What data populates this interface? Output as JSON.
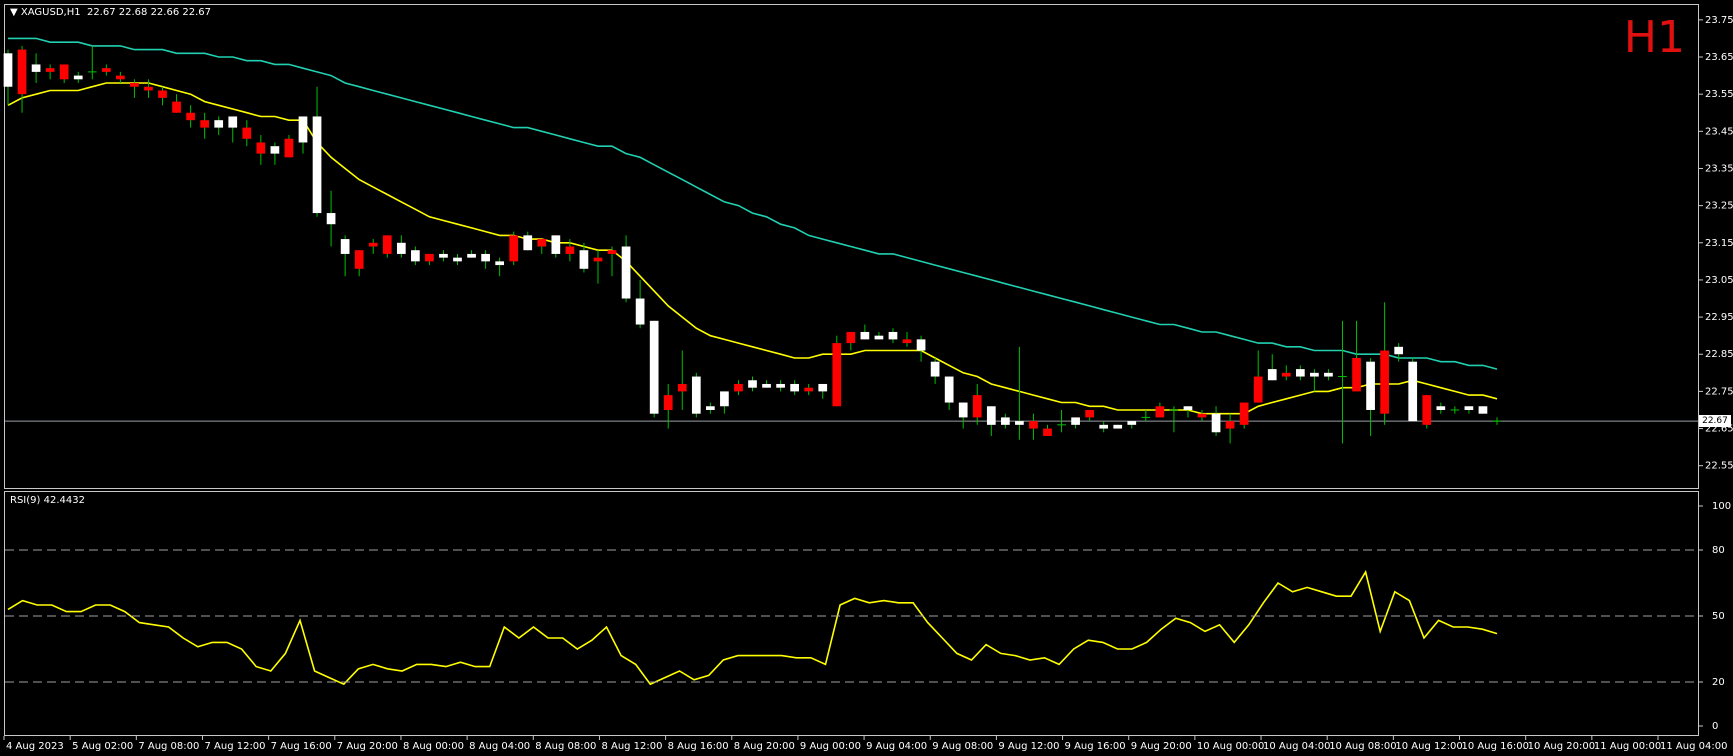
{
  "header": {
    "symbol": "XAGUSD,H1",
    "ohlc": "22.67 22.68 22.66 22.67",
    "timeframe_badge": "H1",
    "rsi_label": "RSI(9) 42.4432",
    "current_price": "22.67"
  },
  "colors": {
    "background": "#000000",
    "bull_candle": "#ffffff",
    "bear_candle": "#ff0000",
    "wick": "#00c000",
    "ma_fast": "#ffff00",
    "ma_slow": "#20d0b0",
    "rsi_line": "#ffff00",
    "timeframe_badge": "#e01010"
  },
  "chart_data": [
    {
      "type": "candlestick",
      "title": "XAGUSD,H1",
      "ylim": [
        22.49,
        23.79
      ],
      "y_ticks": [
        "23.75",
        "23.65",
        "23.55",
        "23.45",
        "23.35",
        "23.25",
        "23.15",
        "23.05",
        "22.95",
        "22.85",
        "22.75",
        "22.65",
        "22.55"
      ],
      "x_tick_labels": [
        "4 Aug 2023",
        "5 Aug 02:00",
        "7 Aug 08:00",
        "7 Aug 12:00",
        "7 Aug 16:00",
        "7 Aug 20:00",
        "8 Aug 00:00",
        "8 Aug 04:00",
        "8 Aug 08:00",
        "8 Aug 12:00",
        "8 Aug 16:00",
        "8 Aug 20:00",
        "9 Aug 00:00",
        "9 Aug 04:00",
        "9 Aug 08:00",
        "9 Aug 12:00",
        "9 Aug 16:00",
        "9 Aug 20:00",
        "10 Aug 00:00",
        "10 Aug 04:00",
        "10 Aug 08:00",
        "10 Aug 12:00",
        "10 Aug 16:00",
        "10 Aug 20:00",
        "11 Aug 00:00",
        "11 Aug 04:00"
      ],
      "current_price_line": 22.67,
      "candles": [
        [
          23.57,
          23.67,
          23.52,
          23.66
        ],
        [
          23.67,
          23.68,
          23.5,
          23.55
        ],
        [
          23.61,
          23.66,
          23.58,
          23.63
        ],
        [
          23.62,
          23.63,
          23.59,
          23.61
        ],
        [
          23.63,
          23.63,
          23.58,
          23.59
        ],
        [
          23.59,
          23.61,
          23.58,
          23.6
        ],
        [
          23.61,
          23.68,
          23.59,
          23.61
        ],
        [
          23.62,
          23.63,
          23.6,
          23.61
        ],
        [
          23.6,
          23.61,
          23.58,
          23.59
        ],
        [
          23.58,
          23.59,
          23.54,
          23.57
        ],
        [
          23.57,
          23.59,
          23.54,
          23.56
        ],
        [
          23.56,
          23.57,
          23.52,
          23.54
        ],
        [
          23.53,
          23.55,
          23.5,
          23.5
        ],
        [
          23.5,
          23.52,
          23.46,
          23.48
        ],
        [
          23.48,
          23.5,
          23.43,
          23.46
        ],
        [
          23.46,
          23.49,
          23.44,
          23.48
        ],
        [
          23.46,
          23.49,
          23.42,
          23.49
        ],
        [
          23.46,
          23.48,
          23.41,
          23.43
        ],
        [
          23.42,
          23.44,
          23.36,
          23.39
        ],
        [
          23.39,
          23.42,
          23.36,
          23.41
        ],
        [
          23.43,
          23.44,
          23.38,
          23.38
        ],
        [
          23.42,
          23.49,
          23.39,
          23.49
        ],
        [
          23.23,
          23.57,
          23.22,
          23.49
        ],
        [
          23.2,
          23.29,
          23.14,
          23.23
        ],
        [
          23.12,
          23.17,
          23.06,
          23.16
        ],
        [
          23.13,
          23.13,
          23.06,
          23.08
        ],
        [
          23.15,
          23.16,
          23.12,
          23.14
        ],
        [
          23.17,
          23.17,
          23.11,
          23.12
        ],
        [
          23.12,
          23.17,
          23.11,
          23.15
        ],
        [
          23.1,
          23.14,
          23.09,
          23.13
        ],
        [
          23.12,
          23.12,
          23.09,
          23.1
        ],
        [
          23.11,
          23.13,
          23.1,
          23.12
        ],
        [
          23.1,
          23.12,
          23.09,
          23.11
        ],
        [
          23.11,
          23.13,
          23.11,
          23.12
        ],
        [
          23.1,
          23.13,
          23.08,
          23.12
        ],
        [
          23.09,
          23.11,
          23.06,
          23.1
        ],
        [
          23.17,
          23.18,
          23.09,
          23.1
        ],
        [
          23.13,
          23.18,
          23.13,
          23.17
        ],
        [
          23.16,
          23.16,
          23.12,
          23.14
        ],
        [
          23.12,
          23.17,
          23.11,
          23.17
        ],
        [
          23.14,
          23.16,
          23.1,
          23.12
        ],
        [
          23.08,
          23.15,
          23.07,
          23.13
        ],
        [
          23.11,
          23.13,
          23.04,
          23.1
        ],
        [
          23.13,
          23.14,
          23.06,
          23.12
        ],
        [
          23.0,
          23.17,
          22.99,
          23.14
        ],
        [
          22.93,
          23.05,
          22.92,
          23.0
        ],
        [
          22.69,
          22.94,
          22.68,
          22.94
        ],
        [
          22.74,
          22.77,
          22.65,
          22.7
        ],
        [
          22.77,
          22.86,
          22.7,
          22.75
        ],
        [
          22.69,
          22.8,
          22.68,
          22.79
        ],
        [
          22.7,
          22.72,
          22.69,
          22.71
        ],
        [
          22.71,
          22.75,
          22.69,
          22.75
        ],
        [
          22.77,
          22.78,
          22.74,
          22.75
        ],
        [
          22.76,
          22.79,
          22.75,
          22.78
        ],
        [
          22.76,
          22.78,
          22.76,
          22.77
        ],
        [
          22.76,
          22.78,
          22.75,
          22.77
        ],
        [
          22.75,
          22.78,
          22.74,
          22.77
        ],
        [
          22.76,
          22.77,
          22.74,
          22.75
        ],
        [
          22.75,
          22.77,
          22.73,
          22.77
        ],
        [
          22.88,
          22.9,
          22.71,
          22.71
        ],
        [
          22.91,
          22.91,
          22.86,
          22.88
        ],
        [
          22.89,
          22.93,
          22.89,
          22.91
        ],
        [
          22.89,
          22.91,
          22.89,
          22.9
        ],
        [
          22.89,
          22.92,
          22.88,
          22.91
        ],
        [
          22.89,
          22.91,
          22.87,
          22.88
        ],
        [
          22.86,
          22.9,
          22.83,
          22.89
        ],
        [
          22.79,
          22.84,
          22.77,
          22.83
        ],
        [
          22.72,
          22.79,
          22.7,
          22.79
        ],
        [
          22.68,
          22.72,
          22.65,
          22.72
        ],
        [
          22.74,
          22.77,
          22.66,
          22.68
        ],
        [
          22.66,
          22.71,
          22.63,
          22.71
        ],
        [
          22.66,
          22.69,
          22.65,
          22.68
        ],
        [
          22.66,
          22.87,
          22.62,
          22.67
        ],
        [
          22.67,
          22.69,
          22.62,
          22.65
        ],
        [
          22.65,
          22.66,
          22.63,
          22.63
        ],
        [
          22.66,
          22.7,
          22.64,
          22.66
        ],
        [
          22.66,
          22.68,
          22.65,
          22.68
        ],
        [
          22.7,
          22.7,
          22.67,
          22.68
        ],
        [
          22.65,
          22.67,
          22.64,
          22.66
        ],
        [
          22.65,
          22.66,
          22.65,
          22.66
        ],
        [
          22.66,
          22.67,
          22.65,
          22.67
        ],
        [
          22.68,
          22.7,
          22.67,
          22.68
        ],
        [
          22.71,
          22.72,
          22.68,
          22.68
        ],
        [
          22.7,
          22.71,
          22.64,
          22.7
        ],
        [
          22.7,
          22.71,
          22.68,
          22.71
        ],
        [
          22.69,
          22.7,
          22.67,
          22.68
        ],
        [
          22.64,
          22.71,
          22.63,
          22.69
        ],
        [
          22.67,
          22.69,
          22.61,
          22.65
        ],
        [
          22.72,
          22.72,
          22.65,
          22.66
        ],
        [
          22.79,
          22.86,
          22.72,
          22.72
        ],
        [
          22.78,
          22.85,
          22.78,
          22.81
        ],
        [
          22.8,
          22.82,
          22.78,
          22.79
        ],
        [
          22.79,
          22.82,
          22.78,
          22.81
        ],
        [
          22.79,
          22.81,
          22.75,
          22.8
        ],
        [
          22.79,
          22.81,
          22.78,
          22.8
        ],
        [
          22.79,
          22.94,
          22.61,
          22.79
        ],
        [
          22.84,
          22.94,
          22.75,
          22.75
        ],
        [
          22.7,
          22.84,
          22.63,
          22.83
        ],
        [
          22.86,
          22.99,
          22.66,
          22.69
        ],
        [
          22.85,
          22.88,
          22.83,
          22.87
        ],
        [
          22.67,
          22.84,
          22.67,
          22.83
        ],
        [
          22.74,
          22.74,
          22.65,
          22.66
        ],
        [
          22.7,
          22.72,
          22.69,
          22.71
        ],
        [
          22.7,
          22.71,
          22.69,
          22.7
        ],
        [
          22.7,
          22.71,
          22.69,
          22.71
        ],
        [
          22.69,
          22.71,
          22.69,
          22.71
        ],
        [
          22.67,
          22.68,
          22.66,
          22.67
        ]
      ],
      "ma_fast": [
        23.52,
        23.54,
        23.55,
        23.56,
        23.56,
        23.56,
        23.57,
        23.58,
        23.58,
        23.58,
        23.58,
        23.57,
        23.56,
        23.55,
        23.53,
        23.52,
        23.51,
        23.5,
        23.49,
        23.49,
        23.48,
        23.48,
        23.42,
        23.38,
        23.35,
        23.32,
        23.3,
        23.28,
        23.26,
        23.24,
        23.22,
        23.21,
        23.2,
        23.19,
        23.18,
        23.17,
        23.17,
        23.16,
        23.16,
        23.15,
        23.15,
        23.14,
        23.13,
        23.13,
        23.1,
        23.06,
        23.02,
        22.98,
        22.95,
        22.92,
        22.9,
        22.89,
        22.88,
        22.87,
        22.86,
        22.85,
        22.84,
        22.84,
        22.85,
        22.85,
        22.85,
        22.86,
        22.86,
        22.86,
        22.86,
        22.86,
        22.84,
        22.82,
        22.8,
        22.79,
        22.77,
        22.76,
        22.75,
        22.74,
        22.73,
        22.72,
        22.72,
        22.71,
        22.71,
        22.7,
        22.7,
        22.7,
        22.7,
        22.7,
        22.7,
        22.69,
        22.69,
        22.69,
        22.69,
        22.71,
        22.72,
        22.73,
        22.74,
        22.75,
        22.75,
        22.76,
        22.76,
        22.77,
        22.77,
        22.77,
        22.78,
        22.77,
        22.76,
        22.75,
        22.74,
        22.74,
        22.73
      ],
      "ma_slow": [
        23.7,
        23.7,
        23.7,
        23.69,
        23.69,
        23.69,
        23.68,
        23.68,
        23.68,
        23.67,
        23.67,
        23.67,
        23.66,
        23.66,
        23.66,
        23.65,
        23.65,
        23.64,
        23.64,
        23.63,
        23.63,
        23.62,
        23.61,
        23.6,
        23.58,
        23.57,
        23.56,
        23.55,
        23.54,
        23.53,
        23.52,
        23.51,
        23.5,
        23.49,
        23.48,
        23.47,
        23.46,
        23.46,
        23.45,
        23.44,
        23.43,
        23.42,
        23.41,
        23.41,
        23.39,
        23.38,
        23.36,
        23.34,
        23.32,
        23.3,
        23.28,
        23.26,
        23.25,
        23.23,
        23.22,
        23.2,
        23.19,
        23.17,
        23.16,
        23.15,
        23.14,
        23.13,
        23.12,
        23.12,
        23.11,
        23.1,
        23.09,
        23.08,
        23.07,
        23.06,
        23.05,
        23.04,
        23.03,
        23.02,
        23.01,
        23.0,
        22.99,
        22.98,
        22.97,
        22.96,
        22.95,
        22.94,
        22.93,
        22.93,
        22.92,
        22.91,
        22.91,
        22.9,
        22.89,
        22.88,
        22.88,
        22.87,
        22.87,
        22.86,
        22.86,
        22.86,
        22.85,
        22.85,
        22.85,
        22.84,
        22.84,
        22.84,
        22.83,
        22.83,
        22.82,
        22.82,
        22.81
      ]
    },
    {
      "type": "line",
      "title": "RSI(9) 42.4432",
      "ylim": [
        0,
        100
      ],
      "y_ticks": [
        "100",
        "80",
        "50",
        "20",
        "0"
      ],
      "levels": [
        80,
        50,
        20
      ],
      "series": [
        {
          "name": "RSI(9)",
          "values": [
            53,
            57,
            55,
            55,
            52,
            52,
            55,
            55,
            52,
            47,
            46,
            45,
            40,
            36,
            38,
            38,
            35,
            27,
            25,
            33,
            48,
            25,
            22,
            19,
            26,
            28,
            26,
            25,
            28,
            28,
            27,
            29,
            27,
            27,
            45,
            40,
            45,
            40,
            40,
            35,
            39,
            45,
            32,
            28,
            19,
            22,
            25,
            21,
            23,
            30,
            32,
            32,
            32,
            32,
            31,
            31,
            28,
            55,
            58,
            56,
            57,
            56,
            56,
            47,
            40,
            33,
            30,
            37,
            33,
            32,
            30,
            31,
            28,
            35,
            39,
            38,
            35,
            35,
            38,
            44,
            49,
            47,
            43,
            46,
            38,
            46,
            56,
            65,
            61,
            63,
            61,
            59,
            59,
            70,
            43,
            61,
            57,
            40,
            48,
            45,
            45,
            44,
            42
          ]
        }
      ]
    }
  ]
}
